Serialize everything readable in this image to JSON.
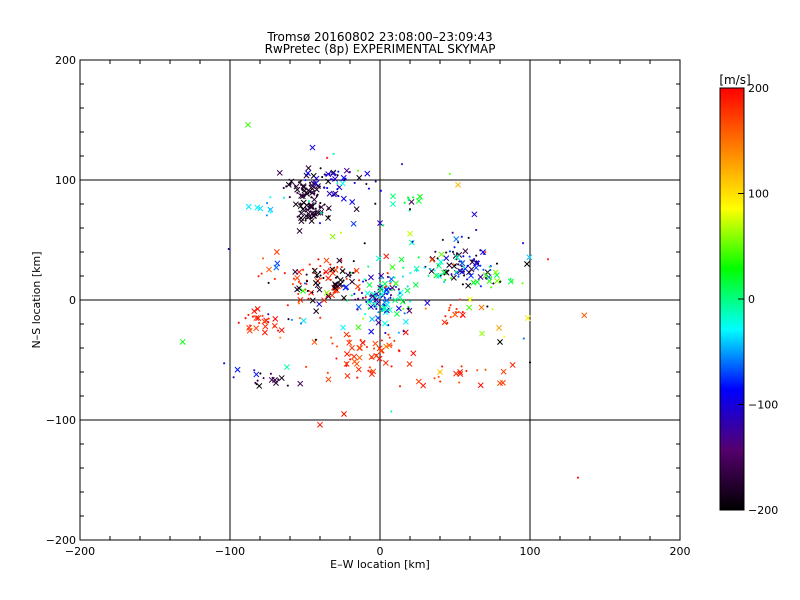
{
  "chart_data": {
    "type": "scatter",
    "title": "Tromsø 20160802 23:08:00–23:09:43",
    "subtitle": "RwPretec (8p) EXPERIMENTAL SKYMAP",
    "xlabel": "E–W location [km]",
    "ylabel": "N–S location [km]",
    "xlim": [
      -200,
      200
    ],
    "ylim": [
      -200,
      200
    ],
    "xticks": [
      -200,
      -100,
      0,
      100,
      200
    ],
    "yticks": [
      -200,
      -100,
      0,
      100,
      200
    ],
    "grid": true,
    "colorbar": {
      "label": "[m/s]",
      "min": -200,
      "max": 200,
      "ticks": [
        -200,
        -100,
        0,
        100,
        200
      ],
      "colormap": [
        "#000000",
        "#55006e",
        "#0000ff",
        "#00ffff",
        "#00ff00",
        "#ffff00",
        "#ff8000",
        "#ff0000"
      ]
    },
    "clusters": [
      {
        "name": "black-nw",
        "cx": -48,
        "cy": 94,
        "sx": 10,
        "sy": 7,
        "n": 60,
        "vmin": -200,
        "vmax": -160
      },
      {
        "name": "black-nw2",
        "cx": -47,
        "cy": 74,
        "sx": 7,
        "sy": 5,
        "n": 45,
        "vmin": -200,
        "vmax": -170
      },
      {
        "name": "blue-n",
        "cx": -30,
        "cy": 98,
        "sx": 8,
        "sy": 5,
        "n": 25,
        "vmin": -120,
        "vmax": -80
      },
      {
        "name": "mixed-n",
        "cx": -15,
        "cy": 90,
        "sx": 20,
        "sy": 18,
        "n": 30,
        "vmin": -200,
        "vmax": 80
      },
      {
        "name": "cyan-nw",
        "cx": -75,
        "cy": 78,
        "sx": 6,
        "sy": 6,
        "n": 10,
        "vmin": -60,
        "vmax": -20
      },
      {
        "name": "green-n",
        "cx": 20,
        "cy": 83,
        "sx": 5,
        "sy": 2,
        "n": 8,
        "vmin": 0,
        "vmax": 30
      },
      {
        "name": "center-mix",
        "cx": 0,
        "cy": 0,
        "sx": 10,
        "sy": 10,
        "n": 90,
        "vmin": -150,
        "vmax": 20
      },
      {
        "name": "red-wmid",
        "cx": -40,
        "cy": 17,
        "sx": 22,
        "sy": 10,
        "n": 60,
        "vmin": 170,
        "vmax": 200
      },
      {
        "name": "black-wmid",
        "cx": -35,
        "cy": 15,
        "sx": 15,
        "sy": 8,
        "n": 40,
        "vmin": -200,
        "vmax": -170
      },
      {
        "name": "black-e",
        "cx": 55,
        "cy": 30,
        "sx": 10,
        "sy": 8,
        "n": 45,
        "vmin": -200,
        "vmax": -160
      },
      {
        "name": "blue-e",
        "cx": 62,
        "cy": 30,
        "sx": 8,
        "sy": 8,
        "n": 30,
        "vmin": -110,
        "vmax": -60
      },
      {
        "name": "green-e",
        "cx": 75,
        "cy": 18,
        "sx": 6,
        "sy": 4,
        "n": 12,
        "vmin": 0,
        "vmax": 60
      },
      {
        "name": "cyan-center",
        "cx": 20,
        "cy": 20,
        "sx": 18,
        "sy": 10,
        "n": 40,
        "vmin": -40,
        "vmax": 40
      },
      {
        "name": "red-sw",
        "cx": -10,
        "cy": -45,
        "sx": 15,
        "sy": 10,
        "n": 60,
        "vmin": 160,
        "vmax": 200
      },
      {
        "name": "red-w",
        "cx": -78,
        "cy": -18,
        "sx": 8,
        "sy": 6,
        "n": 25,
        "vmin": 170,
        "vmax": 200
      },
      {
        "name": "red-e",
        "cx": 48,
        "cy": -10,
        "sx": 5,
        "sy": 5,
        "n": 15,
        "vmin": 170,
        "vmax": 200
      },
      {
        "name": "red-se",
        "cx": 55,
        "cy": -63,
        "sx": 20,
        "sy": 6,
        "n": 20,
        "vmin": 160,
        "vmax": 200
      },
      {
        "name": "black-sw",
        "cx": -75,
        "cy": -67,
        "sx": 8,
        "sy": 5,
        "n": 15,
        "vmin": -200,
        "vmax": -150
      },
      {
        "name": "blue-sw",
        "cx": -90,
        "cy": -60,
        "sx": 7,
        "sy": 3,
        "n": 5,
        "vmin": -120,
        "vmax": -80
      },
      {
        "name": "scatter-wide",
        "cx": 0,
        "cy": 10,
        "sx": 45,
        "sy": 40,
        "n": 80,
        "vmin": -200,
        "vmax": 200
      }
    ],
    "points": [
      {
        "x": -88,
        "y": 146,
        "v": 40,
        "m": "x"
      },
      {
        "x": 52,
        "y": 96,
        "v": 120,
        "m": "x"
      },
      {
        "x": -45,
        "y": 127,
        "v": -100,
        "m": "x"
      },
      {
        "x": -40,
        "y": -104,
        "v": 190,
        "m": "x"
      },
      {
        "x": -24,
        "y": -95,
        "v": 190,
        "m": "x"
      },
      {
        "x": 132,
        "y": -148,
        "v": 195,
        "m": "+"
      },
      {
        "x": 100,
        "y": -52,
        "v": -200,
        "m": "+"
      },
      {
        "x": 112,
        "y": 34,
        "v": 190,
        "m": "+"
      },
      {
        "x": 98,
        "y": 30,
        "v": -200,
        "m": "x"
      },
      {
        "x": 68,
        "y": -28,
        "v": 60,
        "m": "x"
      },
      {
        "x": 80,
        "y": -35,
        "v": -200,
        "m": "x"
      },
      {
        "x": 40,
        "y": -60,
        "v": 110,
        "m": "x"
      }
    ]
  }
}
